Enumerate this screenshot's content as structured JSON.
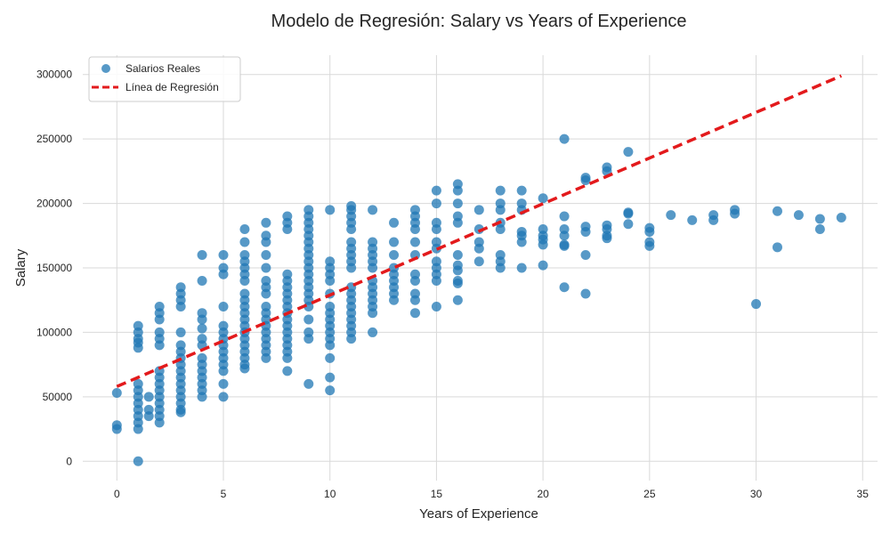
{
  "chart_data": {
    "type": "scatter",
    "title": "Modelo de Regresión: Salary vs Years of Experience",
    "xlabel": "Years of Experience",
    "ylabel": "Salary",
    "xlim": [
      -1.6,
      35.7
    ],
    "ylim": [
      -15000,
      315000
    ],
    "xticks": [
      0,
      5,
      10,
      15,
      20,
      25,
      30,
      35
    ],
    "yticks": [
      0,
      50000,
      100000,
      150000,
      200000,
      250000,
      300000
    ],
    "grid": true,
    "legend_position": "top-left",
    "colors": {
      "points": "#1f77b4",
      "line": "#e31a1c"
    },
    "series": [
      {
        "name": "Salarios Reales",
        "kind": "scatter",
        "points": [
          [
            0,
            25000
          ],
          [
            0,
            28000
          ],
          [
            0,
            53000
          ],
          [
            1,
            0
          ],
          [
            1,
            25000
          ],
          [
            1,
            30000
          ],
          [
            1,
            35000
          ],
          [
            1,
            40000
          ],
          [
            1,
            45000
          ],
          [
            1,
            50000
          ],
          [
            1,
            55000
          ],
          [
            1,
            60000
          ],
          [
            1,
            88000
          ],
          [
            1,
            92000
          ],
          [
            1,
            95000
          ],
          [
            1,
            100000
          ],
          [
            1,
            105000
          ],
          [
            1.5,
            35000
          ],
          [
            1.5,
            40000
          ],
          [
            1.5,
            50000
          ],
          [
            2,
            30000
          ],
          [
            2,
            35000
          ],
          [
            2,
            40000
          ],
          [
            2,
            45000
          ],
          [
            2,
            50000
          ],
          [
            2,
            55000
          ],
          [
            2,
            60000
          ],
          [
            2,
            65000
          ],
          [
            2,
            70000
          ],
          [
            2,
            90000
          ],
          [
            2,
            95000
          ],
          [
            2,
            100000
          ],
          [
            2,
            110000
          ],
          [
            2,
            115000
          ],
          [
            2,
            120000
          ],
          [
            3,
            38000
          ],
          [
            3,
            40000
          ],
          [
            3,
            45000
          ],
          [
            3,
            50000
          ],
          [
            3,
            55000
          ],
          [
            3,
            60000
          ],
          [
            3,
            65000
          ],
          [
            3,
            70000
          ],
          [
            3,
            75000
          ],
          [
            3,
            80000
          ],
          [
            3,
            85000
          ],
          [
            3,
            90000
          ],
          [
            3,
            100000
          ],
          [
            3,
            120000
          ],
          [
            3,
            125000
          ],
          [
            3,
            130000
          ],
          [
            3,
            135000
          ],
          [
            4,
            50000
          ],
          [
            4,
            55000
          ],
          [
            4,
            60000
          ],
          [
            4,
            65000
          ],
          [
            4,
            70000
          ],
          [
            4,
            75000
          ],
          [
            4,
            80000
          ],
          [
            4,
            90000
          ],
          [
            4,
            95000
          ],
          [
            4,
            103000
          ],
          [
            4,
            110000
          ],
          [
            4,
            115000
          ],
          [
            4,
            140000
          ],
          [
            4,
            160000
          ],
          [
            5,
            50000
          ],
          [
            5,
            60000
          ],
          [
            5,
            70000
          ],
          [
            5,
            75000
          ],
          [
            5,
            80000
          ],
          [
            5,
            85000
          ],
          [
            5,
            90000
          ],
          [
            5,
            95000
          ],
          [
            5,
            100000
          ],
          [
            5,
            105000
          ],
          [
            5,
            120000
          ],
          [
            5,
            145000
          ],
          [
            5,
            150000
          ],
          [
            5,
            160000
          ],
          [
            6,
            72000
          ],
          [
            6,
            75000
          ],
          [
            6,
            80000
          ],
          [
            6,
            85000
          ],
          [
            6,
            90000
          ],
          [
            6,
            95000
          ],
          [
            6,
            100000
          ],
          [
            6,
            105000
          ],
          [
            6,
            110000
          ],
          [
            6,
            115000
          ],
          [
            6,
            120000
          ],
          [
            6,
            125000
          ],
          [
            6,
            130000
          ],
          [
            6,
            140000
          ],
          [
            6,
            145000
          ],
          [
            6,
            150000
          ],
          [
            6,
            155000
          ],
          [
            6,
            160000
          ],
          [
            6,
            170000
          ],
          [
            6,
            180000
          ],
          [
            7,
            80000
          ],
          [
            7,
            85000
          ],
          [
            7,
            90000
          ],
          [
            7,
            95000
          ],
          [
            7,
            100000
          ],
          [
            7,
            105000
          ],
          [
            7,
            110000
          ],
          [
            7,
            115000
          ],
          [
            7,
            120000
          ],
          [
            7,
            130000
          ],
          [
            7,
            135000
          ],
          [
            7,
            140000
          ],
          [
            7,
            150000
          ],
          [
            7,
            160000
          ],
          [
            7,
            170000
          ],
          [
            7,
            175000
          ],
          [
            7,
            185000
          ],
          [
            8,
            70000
          ],
          [
            8,
            80000
          ],
          [
            8,
            85000
          ],
          [
            8,
            90000
          ],
          [
            8,
            95000
          ],
          [
            8,
            100000
          ],
          [
            8,
            105000
          ],
          [
            8,
            110000
          ],
          [
            8,
            115000
          ],
          [
            8,
            120000
          ],
          [
            8,
            125000
          ],
          [
            8,
            130000
          ],
          [
            8,
            135000
          ],
          [
            8,
            140000
          ],
          [
            8,
            145000
          ],
          [
            8,
            180000
          ],
          [
            8,
            185000
          ],
          [
            8,
            190000
          ],
          [
            9,
            60000
          ],
          [
            9,
            95000
          ],
          [
            9,
            100000
          ],
          [
            9,
            110000
          ],
          [
            9,
            120000
          ],
          [
            9,
            125000
          ],
          [
            9,
            130000
          ],
          [
            9,
            135000
          ],
          [
            9,
            140000
          ],
          [
            9,
            145000
          ],
          [
            9,
            150000
          ],
          [
            9,
            155000
          ],
          [
            9,
            160000
          ],
          [
            9,
            165000
          ],
          [
            9,
            170000
          ],
          [
            9,
            175000
          ],
          [
            9,
            180000
          ],
          [
            9,
            185000
          ],
          [
            9,
            190000
          ],
          [
            9,
            195000
          ],
          [
            10,
            55000
          ],
          [
            10,
            65000
          ],
          [
            10,
            80000
          ],
          [
            10,
            90000
          ],
          [
            10,
            95000
          ],
          [
            10,
            100000
          ],
          [
            10,
            105000
          ],
          [
            10,
            110000
          ],
          [
            10,
            115000
          ],
          [
            10,
            120000
          ],
          [
            10,
            130000
          ],
          [
            10,
            140000
          ],
          [
            10,
            145000
          ],
          [
            10,
            150000
          ],
          [
            10,
            155000
          ],
          [
            10,
            195000
          ],
          [
            11,
            95000
          ],
          [
            11,
            100000
          ],
          [
            11,
            105000
          ],
          [
            11,
            110000
          ],
          [
            11,
            115000
          ],
          [
            11,
            120000
          ],
          [
            11,
            125000
          ],
          [
            11,
            130000
          ],
          [
            11,
            135000
          ],
          [
            11,
            150000
          ],
          [
            11,
            155000
          ],
          [
            11,
            160000
          ],
          [
            11,
            165000
          ],
          [
            11,
            170000
          ],
          [
            11,
            180000
          ],
          [
            11,
            185000
          ],
          [
            11,
            190000
          ],
          [
            11,
            195000
          ],
          [
            11,
            198000
          ],
          [
            12,
            100000
          ],
          [
            12,
            115000
          ],
          [
            12,
            120000
          ],
          [
            12,
            125000
          ],
          [
            12,
            130000
          ],
          [
            12,
            135000
          ],
          [
            12,
            140000
          ],
          [
            12,
            150000
          ],
          [
            12,
            155000
          ],
          [
            12,
            160000
          ],
          [
            12,
            165000
          ],
          [
            12,
            170000
          ],
          [
            12,
            195000
          ],
          [
            13,
            125000
          ],
          [
            13,
            130000
          ],
          [
            13,
            135000
          ],
          [
            13,
            140000
          ],
          [
            13,
            145000
          ],
          [
            13,
            150000
          ],
          [
            13,
            160000
          ],
          [
            13,
            170000
          ],
          [
            13,
            185000
          ],
          [
            14,
            115000
          ],
          [
            14,
            125000
          ],
          [
            14,
            130000
          ],
          [
            14,
            140000
          ],
          [
            14,
            145000
          ],
          [
            14,
            160000
          ],
          [
            14,
            170000
          ],
          [
            14,
            180000
          ],
          [
            14,
            185000
          ],
          [
            14,
            190000
          ],
          [
            14,
            195000
          ],
          [
            15,
            120000
          ],
          [
            15,
            140000
          ],
          [
            15,
            145000
          ],
          [
            15,
            150000
          ],
          [
            15,
            155000
          ],
          [
            15,
            165000
          ],
          [
            15,
            170000
          ],
          [
            15,
            180000
          ],
          [
            15,
            185000
          ],
          [
            15,
            200000
          ],
          [
            15,
            210000
          ],
          [
            16,
            125000
          ],
          [
            16,
            138000
          ],
          [
            16,
            140000
          ],
          [
            16,
            148000
          ],
          [
            16,
            152000
          ],
          [
            16,
            160000
          ],
          [
            16,
            185000
          ],
          [
            16,
            190000
          ],
          [
            16,
            200000
          ],
          [
            16,
            210000
          ],
          [
            16,
            215000
          ],
          [
            17,
            155000
          ],
          [
            17,
            165000
          ],
          [
            17,
            170000
          ],
          [
            17,
            180000
          ],
          [
            17,
            195000
          ],
          [
            18,
            150000
          ],
          [
            18,
            155000
          ],
          [
            18,
            160000
          ],
          [
            18,
            180000
          ],
          [
            18,
            185000
          ],
          [
            18,
            195000
          ],
          [
            18,
            200000
          ],
          [
            18,
            210000
          ],
          [
            19,
            150000
          ],
          [
            19,
            170000
          ],
          [
            19,
            175000
          ],
          [
            19,
            178000
          ],
          [
            19,
            195000
          ],
          [
            19,
            200000
          ],
          [
            19,
            210000
          ],
          [
            20,
            152000
          ],
          [
            20,
            168000
          ],
          [
            20,
            172000
          ],
          [
            20,
            175000
          ],
          [
            20,
            180000
          ],
          [
            20,
            204000
          ],
          [
            21,
            135000
          ],
          [
            21,
            167000
          ],
          [
            21,
            168000
          ],
          [
            21,
            175000
          ],
          [
            21,
            180000
          ],
          [
            21,
            190000
          ],
          [
            21,
            250000
          ],
          [
            22,
            130000
          ],
          [
            22,
            160000
          ],
          [
            22,
            178000
          ],
          [
            22,
            182000
          ],
          [
            22,
            218000
          ],
          [
            22,
            220000
          ],
          [
            23,
            173000
          ],
          [
            23,
            175000
          ],
          [
            23,
            180000
          ],
          [
            23,
            183000
          ],
          [
            23,
            225000
          ],
          [
            23,
            228000
          ],
          [
            24,
            184000
          ],
          [
            24,
            192000
          ],
          [
            24,
            193000
          ],
          [
            24,
            240000
          ],
          [
            25,
            167000
          ],
          [
            25,
            170000
          ],
          [
            25,
            178000
          ],
          [
            25,
            181000
          ],
          [
            26,
            191000
          ],
          [
            27,
            187000
          ],
          [
            28,
            187000
          ],
          [
            28,
            191000
          ],
          [
            29,
            192000
          ],
          [
            29,
            195000
          ],
          [
            30,
            122000
          ],
          [
            31,
            166000
          ],
          [
            31,
            194000
          ],
          [
            32,
            191000
          ],
          [
            33,
            180000
          ],
          [
            33,
            188000
          ],
          [
            34,
            189000
          ]
        ]
      },
      {
        "name": "Línea de Regresión",
        "kind": "line",
        "x": [
          0,
          34
        ],
        "y": [
          58000,
          299000
        ]
      }
    ]
  }
}
